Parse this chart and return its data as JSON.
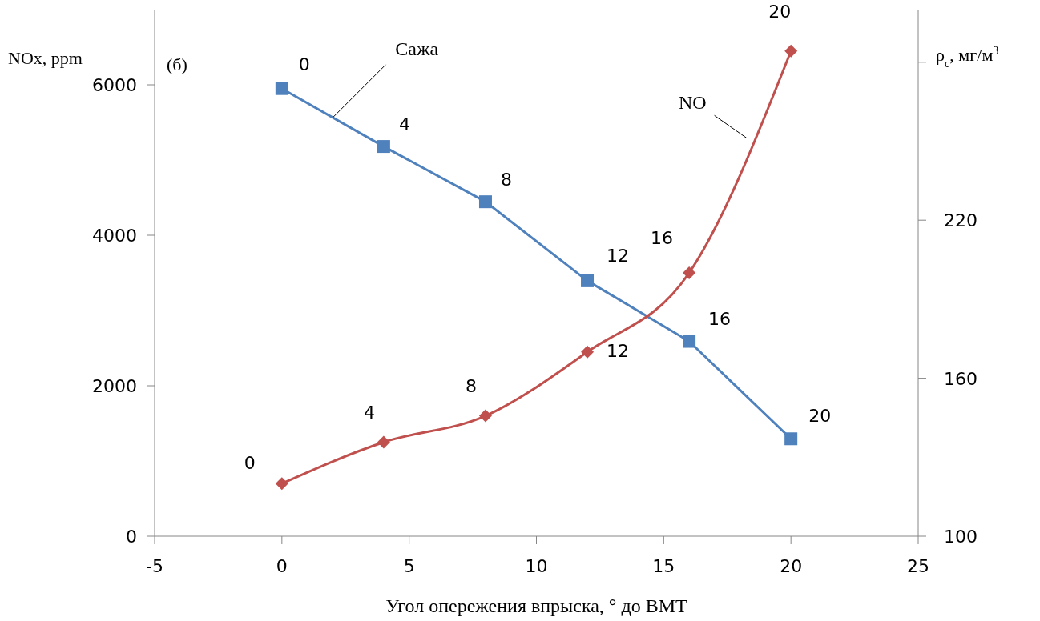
{
  "chart_data": {
    "type": "line",
    "xlabel": "Угол опережения впрыска, ° до ВМТ",
    "ylabel": "NOx, ppm",
    "y2label": "ρ$_{c}$, мг/м$^{3}$",
    "annotations": [
      "(б)",
      {
        "text": "0",
        "x": 0,
        "y": 5940
      },
      {
        "text": "4",
        "x": 4,
        "y": 5160
      },
      {
        "text": "8",
        "x": 8,
        "y": 4430
      },
      {
        "text": "12",
        "x": 12,
        "y": 3390
      },
      {
        "text": "16",
        "x": 16,
        "y": 2570
      },
      {
        "text": "20",
        "x": 20,
        "y": 1290
      },
      {
        "text": "0",
        "x": 0,
        "y": 700
      },
      {
        "text": "4",
        "x": 4,
        "y": 1250
      },
      {
        "text": "8",
        "x": 8,
        "y": 1600
      },
      {
        "text": "12",
        "x": 12,
        "y": 2450
      },
      {
        "text": "16",
        "x": 16,
        "y": 3500
      },
      {
        "text": "20",
        "x": 20,
        "y": 6450
      }
    ],
    "x": [
      0,
      4,
      8,
      12,
      16,
      20
    ],
    "xlim": [
      -5,
      25
    ],
    "xticks": [
      -5,
      0,
      5,
      10,
      15,
      20,
      25
    ],
    "ylim": [
      0,
      7000
    ],
    "yticks": [
      0,
      2000,
      4000,
      6000
    ],
    "y2lim": [
      100,
      300
    ],
    "y2ticks": [
      100,
      160,
      220,
      {
        "value": 280,
        "label": null
      }
    ],
    "grid": false,
    "legend": false,
    "line_style": "solid",
    "series": [
      {
        "name": "Сажа",
        "color": "#4f81bd",
        "axis": "y2",
        "marker": "square",
        "values": [
          270,
          248,
          227,
          197,
          174,
          137
        ]
      },
      {
        "name": "NO",
        "color": "#c0504d",
        "marker": "diamond",
        "values": [
          700,
          1250,
          1600,
          2450,
          3500,
          6450
        ]
      }
    ]
  }
}
